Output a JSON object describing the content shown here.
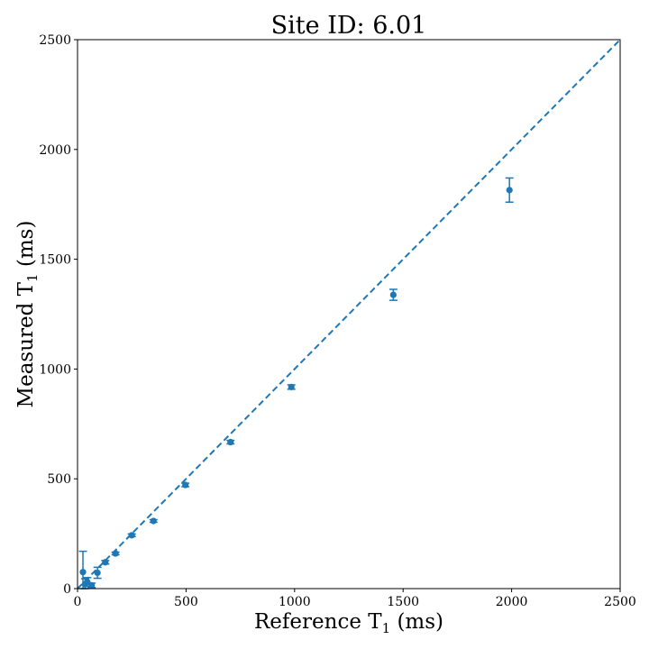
{
  "chart_data": {
    "type": "scatter",
    "title": "Site ID: 6.01",
    "xlabel": {
      "main": "Reference T",
      "sub": "1",
      "unit": " (ms)"
    },
    "ylabel": {
      "main": "Measured T",
      "sub": "1",
      "unit": " (ms)"
    },
    "xlim": [
      0,
      2500
    ],
    "ylim": [
      0,
      2500
    ],
    "xticks": [
      0,
      500,
      1000,
      1500,
      2000,
      2500
    ],
    "yticks": [
      0,
      500,
      1000,
      1500,
      2000,
      2500
    ],
    "grid": false,
    "colors": {
      "series": "#1f77b4",
      "axis": "#000000"
    },
    "series": [
      {
        "marker": "circle",
        "errorbars": true,
        "points": [
          {
            "x": 1990,
            "y": 1815,
            "err": 55
          },
          {
            "x": 1455,
            "y": 1338,
            "err": 25
          },
          {
            "x": 985,
            "y": 918,
            "err": 10
          },
          {
            "x": 705,
            "y": 667,
            "err": 8
          },
          {
            "x": 497,
            "y": 472,
            "err": 8
          },
          {
            "x": 350,
            "y": 308,
            "err": 6
          },
          {
            "x": 250,
            "y": 243,
            "err": 6
          },
          {
            "x": 175,
            "y": 160,
            "err": 6
          },
          {
            "x": 128,
            "y": 120,
            "err": 8
          },
          {
            "x": 92,
            "y": 72,
            "err": 25
          },
          {
            "x": 65,
            "y": 15,
            "err": 10
          },
          {
            "x": 45,
            "y": 30,
            "err": 20
          },
          {
            "x": 35,
            "y": 20,
            "err": 25
          },
          {
            "x": 25,
            "y": 75,
            "err": 95
          }
        ]
      },
      {
        "style": "dashed",
        "points": [
          {
            "x": 0,
            "y": 0
          },
          {
            "x": 2500,
            "y": 2500
          }
        ]
      }
    ]
  }
}
